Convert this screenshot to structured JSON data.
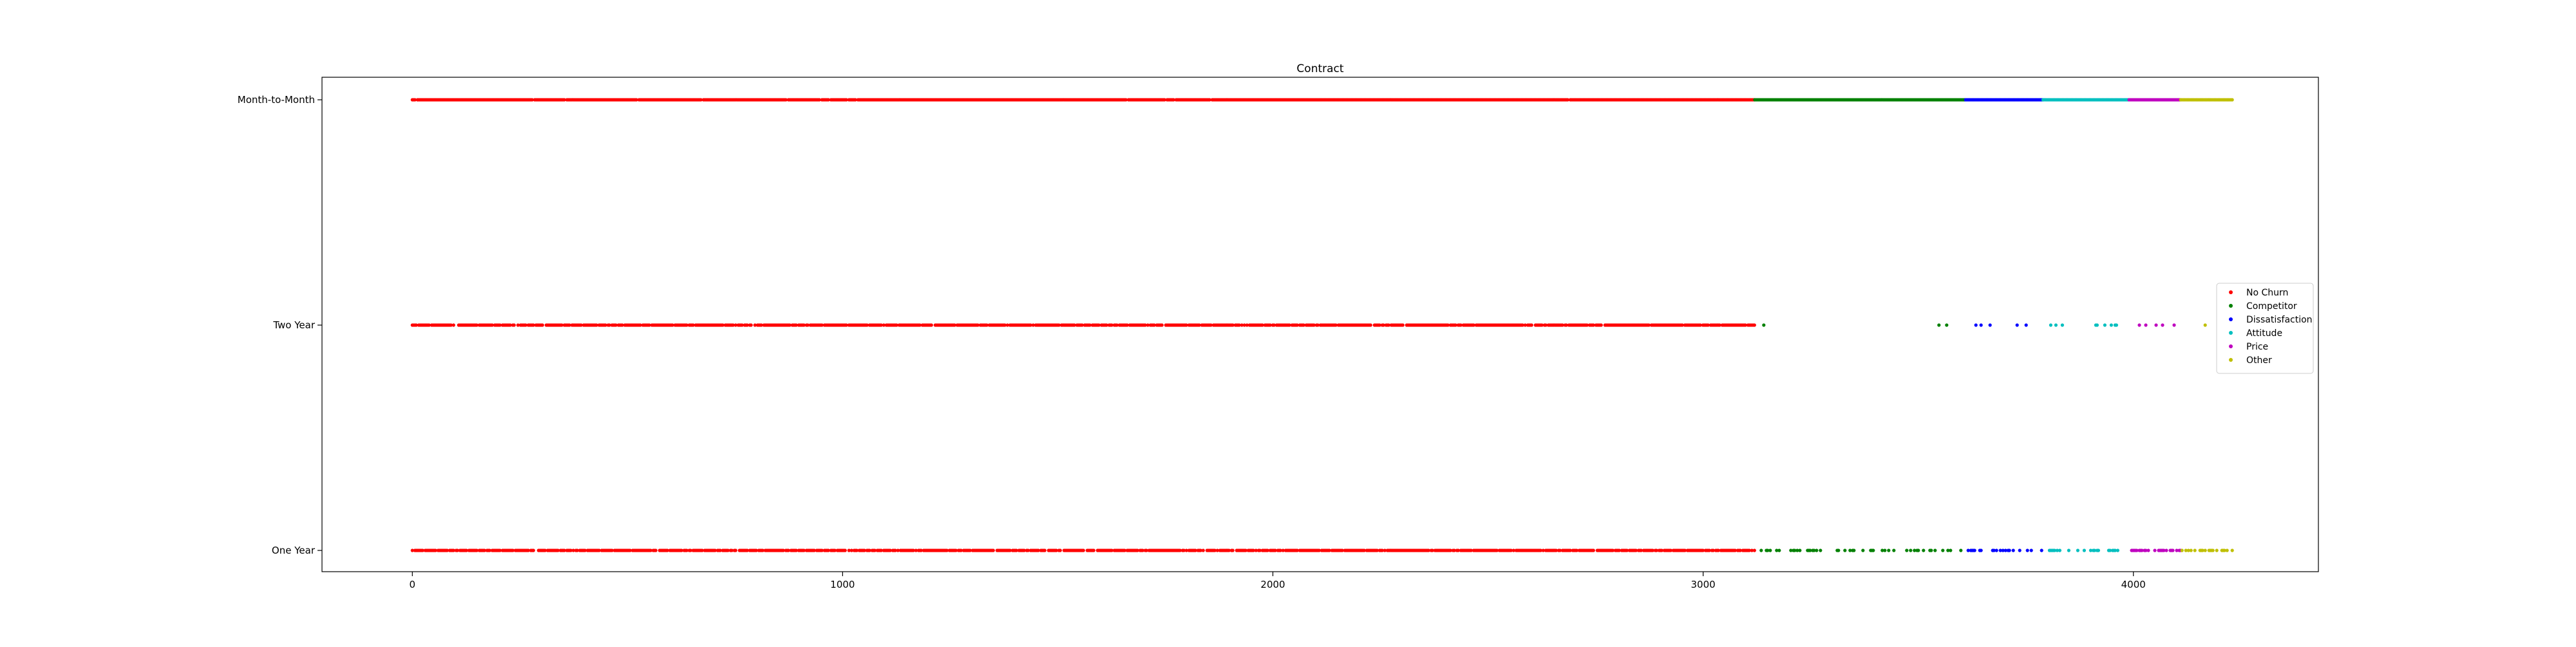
{
  "chart_data": {
    "type": "scatter",
    "title": "Contract",
    "xlabel": "",
    "ylabel": "",
    "xlim": [
      -210,
      4430
    ],
    "x_ticks": [
      0,
      1000,
      2000,
      3000,
      4000
    ],
    "y_categories": [
      "One Year",
      "Two Year",
      "Month-to-Month"
    ],
    "legend_position": "center-right",
    "grid": false,
    "series": [
      {
        "name": "No Churn",
        "color": "#ff0000",
        "x_range": [
          0,
          3120
        ],
        "density": {
          "One Year": 0.88,
          "Two Year": 0.88,
          "Month-to-Month": 0.98
        }
      },
      {
        "name": "Competitor",
        "color": "#008000",
        "x_range": [
          3120,
          3610
        ],
        "density": {
          "One Year": 0.28,
          "Two Year": 0.03,
          "Month-to-Month": 1.0
        }
      },
      {
        "name": "Dissatisfaction",
        "color": "#0000ff",
        "x_range": [
          3610,
          3790
        ],
        "density": {
          "One Year": 0.35,
          "Two Year": 0.05,
          "Month-to-Month": 1.0
        }
      },
      {
        "name": "Attitude",
        "color": "#00bfbf",
        "x_range": [
          3790,
          3990
        ],
        "density": {
          "One Year": 0.35,
          "Two Year": 0.05,
          "Month-to-Month": 1.0
        }
      },
      {
        "name": "Price",
        "color": "#bf00bf",
        "x_range": [
          3990,
          4110
        ],
        "density": {
          "One Year": 0.45,
          "Two Year": 0.1,
          "Month-to-Month": 1.0
        }
      },
      {
        "name": "Other",
        "color": "#bfbf00",
        "x_range": [
          4110,
          4230
        ],
        "density": {
          "One Year": 0.45,
          "Two Year": 0.05,
          "Month-to-Month": 1.0
        }
      }
    ]
  }
}
